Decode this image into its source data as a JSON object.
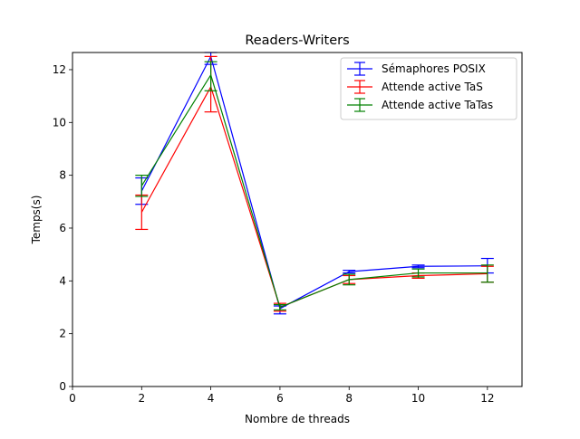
{
  "chart_data": {
    "type": "line",
    "title": "Readers-Writers",
    "xlabel": "Nombre de threads",
    "ylabel": "Temps(s)",
    "xlim": [
      0,
      13
    ],
    "ylim": [
      0,
      12.65
    ],
    "xticks": [
      0,
      2,
      4,
      6,
      8,
      10,
      12
    ],
    "yticks": [
      0,
      2,
      4,
      6,
      8,
      10,
      12
    ],
    "grid": false,
    "legend_position": "top-right",
    "x": [
      2,
      4,
      6,
      8,
      10,
      12
    ],
    "series": [
      {
        "name": "Sémaphores POSIX",
        "color": "#0000ff",
        "values": [
          7.4,
          12.5,
          2.95,
          4.35,
          4.55,
          4.57
        ],
        "err_low": [
          6.9,
          12.2,
          2.75,
          4.3,
          4.5,
          4.3
        ],
        "err_high": [
          7.9,
          12.65,
          3.05,
          4.4,
          4.6,
          4.85
        ]
      },
      {
        "name": "Attende active TaS",
        "color": "#ff0000",
        "values": [
          6.6,
          11.35,
          3.0,
          4.05,
          4.2,
          4.27
        ],
        "err_low": [
          5.95,
          10.4,
          2.85,
          3.9,
          4.1,
          3.95
        ],
        "err_high": [
          7.25,
          12.5,
          3.15,
          4.2,
          4.3,
          4.55
        ]
      },
      {
        "name": "Attende active TaTas",
        "color": "#008000",
        "values": [
          7.6,
          11.8,
          3.0,
          4.05,
          4.3,
          4.3
        ],
        "err_low": [
          7.2,
          11.2,
          2.9,
          3.85,
          4.15,
          3.95
        ],
        "err_high": [
          8.0,
          12.3,
          3.1,
          4.25,
          4.45,
          4.6
        ]
      }
    ]
  }
}
